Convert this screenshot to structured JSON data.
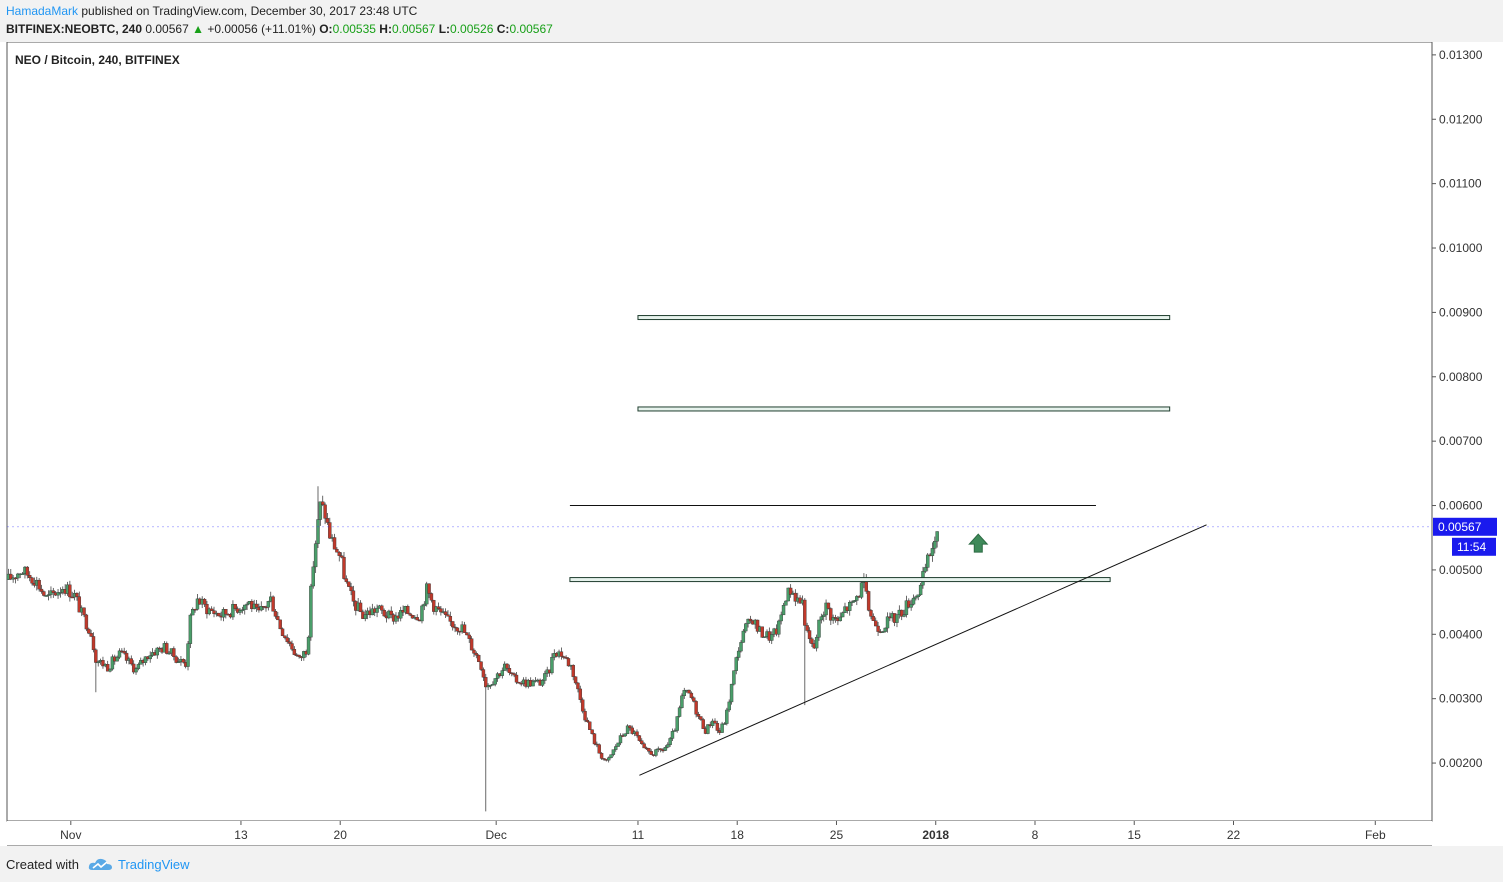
{
  "header": {
    "author": "HamadaMark",
    "published": "published on TradingView.com, December 30, 2017 23:48 UTC",
    "symbol": "BITFINEX:NEOBTC, 240",
    "last": "0.00567",
    "change_arrow": "▲",
    "change": "+0.00056 (+11.01%)",
    "o_label": "O:",
    "o": "0.00535",
    "h_label": "H:",
    "h": "0.00567",
    "l_label": "L:",
    "l": "0.00526",
    "c_label": "C:",
    "c": "0.00567"
  },
  "footer": {
    "created": "Created with",
    "brand": "TradingView",
    "logo_icon": "cloud-icon"
  },
  "chart_data": {
    "type": "candlestick",
    "title": "NEO / Bitcoin, 240, BITFINEX",
    "x_tick_labels": [
      {
        "label": "Nov",
        "t": 0
      },
      {
        "label": "13",
        "t": 12
      },
      {
        "label": "20",
        "t": 19
      },
      {
        "label": "Dec",
        "t": 30
      },
      {
        "label": "11",
        "t": 40
      },
      {
        "label": "18",
        "t": 47
      },
      {
        "label": "25",
        "t": 54
      },
      {
        "label": "2018",
        "t": 61,
        "bold": true
      },
      {
        "label": "8",
        "t": 68
      },
      {
        "label": "15",
        "t": 75
      },
      {
        "label": "22",
        "t": 82
      },
      {
        "label": "Feb",
        "t": 92
      }
    ],
    "xlim": [
      -4.5,
      96
    ],
    "ylim": [
      0.0011,
      0.0132
    ],
    "y_ticks": [
      "0.00200",
      "0.00300",
      "0.00400",
      "0.00500",
      "0.00600",
      "0.00700",
      "0.00800",
      "0.00900",
      "0.01000",
      "0.01100",
      "0.01200",
      "0.01300"
    ],
    "last_price": "0.00567",
    "countdown": "11:54",
    "up_color": "#4a9e6a",
    "down_color": "#c0392b",
    "price_keypoints": [
      [
        -4.4,
        0.00485
      ],
      [
        -3.5,
        0.005
      ],
      [
        -2.5,
        0.00485
      ],
      [
        -1.7,
        0.00455
      ],
      [
        -0.5,
        0.00475
      ],
      [
        0.3,
        0.0046
      ],
      [
        0.8,
        0.0043
      ],
      [
        1.4,
        0.00405
      ],
      [
        1.8,
        0.0036
      ],
      [
        2.6,
        0.0035
      ],
      [
        3.5,
        0.0037
      ],
      [
        4.6,
        0.00345
      ],
      [
        5.5,
        0.0037
      ],
      [
        6.6,
        0.0038
      ],
      [
        7.6,
        0.0036
      ],
      [
        8.1,
        0.00355
      ],
      [
        8.4,
        0.0042
      ],
      [
        8.9,
        0.00455
      ],
      [
        9.6,
        0.0044
      ],
      [
        10.6,
        0.0043
      ],
      [
        11.6,
        0.0044
      ],
      [
        12.6,
        0.0045
      ],
      [
        13.2,
        0.0043
      ],
      [
        14.1,
        0.00455
      ],
      [
        14.8,
        0.0041
      ],
      [
        15.6,
        0.0038
      ],
      [
        16.1,
        0.0036
      ],
      [
        16.7,
        0.0038
      ],
      [
        17.0,
        0.0049
      ],
      [
        17.3,
        0.0055
      ],
      [
        17.6,
        0.006
      ],
      [
        17.9,
        0.0059
      ],
      [
        18.3,
        0.0055
      ],
      [
        19.0,
        0.0052
      ],
      [
        19.4,
        0.0048
      ],
      [
        19.9,
        0.0045
      ],
      [
        20.6,
        0.0043
      ],
      [
        21.6,
        0.0044
      ],
      [
        22.6,
        0.00425
      ],
      [
        23.6,
        0.00435
      ],
      [
        24.6,
        0.0043
      ],
      [
        25.1,
        0.0047
      ],
      [
        25.6,
        0.00445
      ],
      [
        26.6,
        0.0042
      ],
      [
        27.6,
        0.0041
      ],
      [
        28.3,
        0.0038
      ],
      [
        28.9,
        0.00355
      ],
      [
        29.3,
        0.0032
      ],
      [
        29.8,
        0.0033
      ],
      [
        30.6,
        0.0035
      ],
      [
        31.2,
        0.0033
      ],
      [
        32.1,
        0.00325
      ],
      [
        33.1,
        0.00325
      ],
      [
        33.7,
        0.0034
      ],
      [
        34.1,
        0.00375
      ],
      [
        34.6,
        0.0037
      ],
      [
        35.3,
        0.0035
      ],
      [
        35.8,
        0.0031
      ],
      [
        36.3,
        0.0027
      ],
      [
        36.8,
        0.0024
      ],
      [
        37.3,
        0.00215
      ],
      [
        37.8,
        0.002
      ],
      [
        38.4,
        0.00225
      ],
      [
        38.8,
        0.0024
      ],
      [
        39.3,
        0.00255
      ],
      [
        39.8,
        0.00245
      ],
      [
        40.4,
        0.0022
      ],
      [
        41.1,
        0.00215
      ],
      [
        41.7,
        0.0022
      ],
      [
        42.2,
        0.0023
      ],
      [
        42.7,
        0.0026
      ],
      [
        43.2,
        0.0031
      ],
      [
        43.7,
        0.00305
      ],
      [
        44.3,
        0.0027
      ],
      [
        44.8,
        0.0025
      ],
      [
        45.3,
        0.0027
      ],
      [
        45.7,
        0.00245
      ],
      [
        46.2,
        0.0027
      ],
      [
        46.6,
        0.0032
      ],
      [
        47.1,
        0.0038
      ],
      [
        47.6,
        0.0041
      ],
      [
        48.1,
        0.00425
      ],
      [
        48.5,
        0.00405
      ],
      [
        49.0,
        0.004
      ],
      [
        49.4,
        0.00395
      ],
      [
        49.9,
        0.0041
      ],
      [
        50.4,
        0.0046
      ],
      [
        50.8,
        0.0047
      ],
      [
        51.2,
        0.00455
      ],
      [
        51.6,
        0.0045
      ],
      [
        51.9,
        0.004
      ],
      [
        52.4,
        0.00375
      ],
      [
        52.9,
        0.0043
      ],
      [
        53.3,
        0.00445
      ],
      [
        53.7,
        0.00425
      ],
      [
        54.2,
        0.0042
      ],
      [
        54.6,
        0.0044
      ],
      [
        55.1,
        0.00445
      ],
      [
        55.6,
        0.00465
      ],
      [
        55.9,
        0.0048
      ],
      [
        56.2,
        0.00445
      ],
      [
        56.6,
        0.0042
      ],
      [
        57.1,
        0.0041
      ],
      [
        57.6,
        0.0042
      ],
      [
        58.1,
        0.00425
      ],
      [
        58.6,
        0.00435
      ],
      [
        59.1,
        0.0045
      ],
      [
        59.5,
        0.0046
      ],
      [
        59.9,
        0.0047
      ],
      [
        60.3,
        0.00505
      ],
      [
        60.6,
        0.00525
      ],
      [
        60.9,
        0.00545
      ],
      [
        61.2,
        0.00567
      ]
    ],
    "wick_spikes": [
      {
        "t": 1.8,
        "low": 0.0031
      },
      {
        "t": 29.3,
        "low": 0.00125
      },
      {
        "t": 51.8,
        "low": 0.0029
      },
      {
        "t": 17.5,
        "high": 0.0063
      },
      {
        "t": 55.9,
        "high": 0.00495
      },
      {
        "t": 61.2,
        "high": 0.0057
      }
    ],
    "annotations": {
      "boxes": [
        {
          "t1": 40,
          "t2": 77.5,
          "y": 0.00892
        },
        {
          "t1": 40,
          "t2": 77.5,
          "y": 0.0075
        },
        {
          "t1": 35.2,
          "t2": 73.3,
          "y": 0.00485
        }
      ],
      "hline": {
        "t1": 35.2,
        "t2": 72.3,
        "y": 0.006
      },
      "trendline": {
        "t1": 40.1,
        "y1": 0.00181,
        "t2": 80.1,
        "y2": 0.0057
      },
      "arrow": {
        "t": 64.0,
        "y": 0.0054
      }
    }
  }
}
